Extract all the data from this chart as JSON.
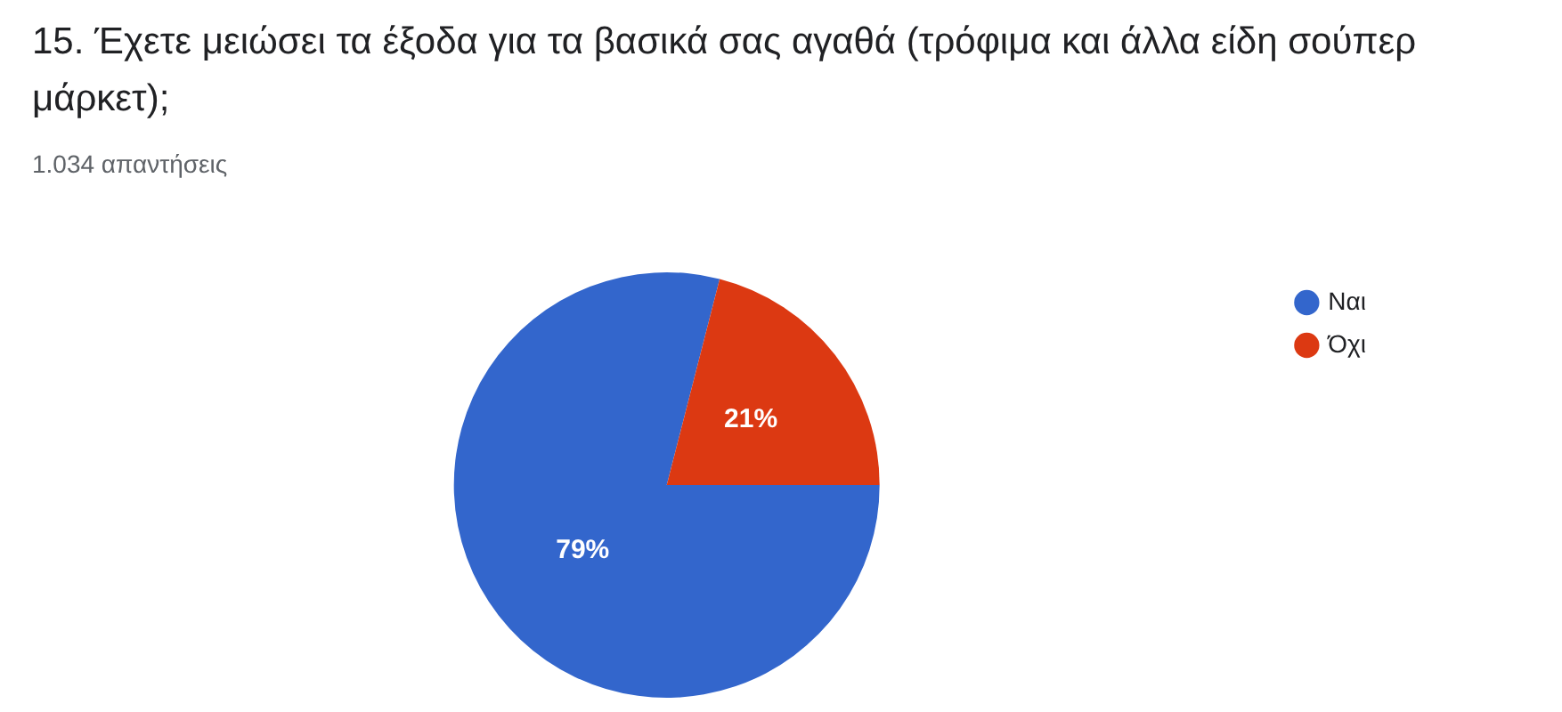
{
  "chart_data": {
    "type": "pie",
    "title": "15. Έχετε μειώσει τα έξοδα για τα βασικά σας αγαθά (τρόφιμα και άλλα είδη σούπερ μάρκετ);",
    "subtitle": "1.034 απαντήσεις",
    "categories": [
      "Ναι",
      "Όχι"
    ],
    "values": [
      79,
      21
    ],
    "value_labels": [
      "79%",
      "21%"
    ],
    "colors": [
      "#3366cc",
      "#dc3912"
    ],
    "legend": "top right"
  }
}
